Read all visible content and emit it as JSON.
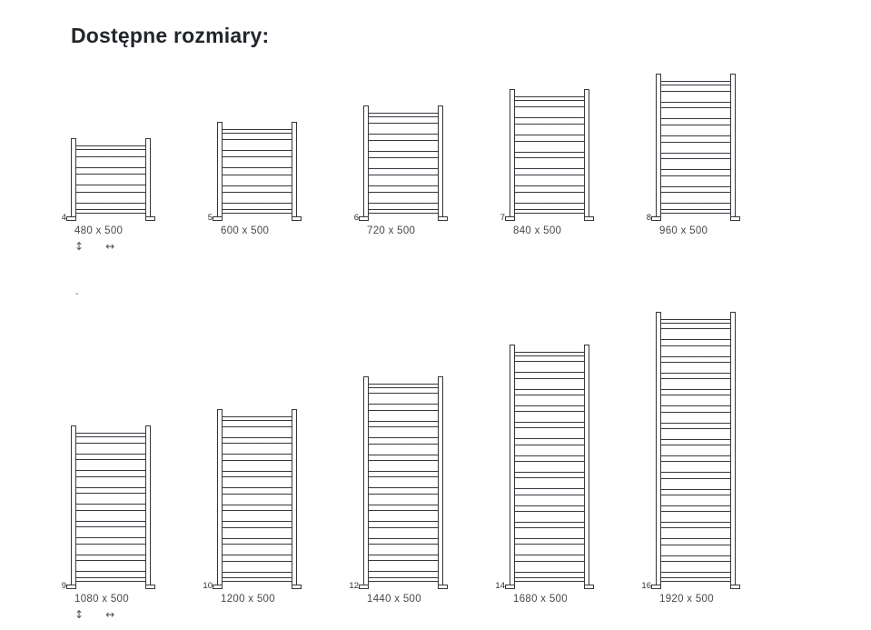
{
  "title": "Dostępne rozmiary:",
  "stray_mark": "-",
  "icons": {
    "height_arrow": "↕",
    "width_arrow": "↔"
  },
  "colors": {
    "line": "#33383d",
    "label": "#45494e",
    "icon": "#49525c",
    "title": "#20262c",
    "number": "#2e3338"
  },
  "rows": [
    {
      "items": [
        {
          "bars": 4,
          "label": "480 x 500",
          "show_arrows": true
        },
        {
          "bars": 5,
          "label": "600 x 500",
          "show_arrows": false
        },
        {
          "bars": 6,
          "label": "720 x 500",
          "show_arrows": false
        },
        {
          "bars": 7,
          "label": "840 x 500",
          "show_arrows": false
        },
        {
          "bars": 8,
          "label": "960 x 500",
          "show_arrows": false
        }
      ]
    },
    {
      "items": [
        {
          "bars": 9,
          "label": "1080 x 500",
          "show_arrows": true
        },
        {
          "bars": 10,
          "label": "1200 x 500",
          "show_arrows": false
        },
        {
          "bars": 12,
          "label": "1440 x 500",
          "show_arrows": false
        },
        {
          "bars": 14,
          "label": "1680 x 500",
          "show_arrows": false
        },
        {
          "bars": 16,
          "label": "1920 x 500",
          "show_arrows": false
        }
      ]
    }
  ]
}
